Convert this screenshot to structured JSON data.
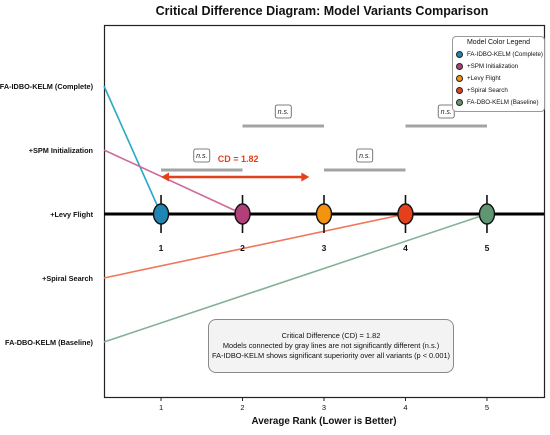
{
  "chart_data": {
    "type": "critical-difference",
    "title": "Critical Difference Diagram: Model Variants Comparison",
    "xlabel": "Average Rank (Lower is Better)",
    "xlim": [
      0.3,
      5.7
    ],
    "xticks": [
      1,
      2,
      3,
      4,
      5
    ],
    "xtick_labels": [
      "1",
      "2",
      "3",
      "4",
      "5"
    ],
    "models": [
      {
        "label": "FA-IDBO-KELM (Complete)",
        "legend": "FA-IDBO-KELM (Complete)",
        "rank": 1,
        "color": "#1f86b4"
      },
      {
        "label": "+SPM Initialization",
        "legend": "+SPM Initialization",
        "rank": 2,
        "color": "#b13f7a"
      },
      {
        "label": "+Levy Flight",
        "legend": "+Levy Flight",
        "rank": 3,
        "color": "#f4930e"
      },
      {
        "label": "+Spiral Search",
        "legend": "+Spiral Search",
        "rank": 4,
        "color": "#e4401a"
      },
      {
        "label": "FA-DBO-KELM (Baseline)",
        "legend": "FA-DBO-KELM (Baseline)",
        "rank": 5,
        "color": "#5f9773"
      }
    ],
    "cd": {
      "value": 1.82,
      "label": "CD = 1.82",
      "from": 1,
      "to": 2.82,
      "color": "#e4401a"
    },
    "ns_groups": [
      {
        "from": 1,
        "to": 2,
        "label": "n.s."
      },
      {
        "from": 2,
        "to": 3,
        "label": "n.s."
      },
      {
        "from": 3,
        "to": 4,
        "label": "n.s."
      },
      {
        "from": 4,
        "to": 5,
        "label": "n.s."
      }
    ],
    "legend_title": "Model Color Legend",
    "legend_position": "top-right",
    "note_lines": [
      "Critical Difference (CD) = 1.82",
      "Models connected by gray lines are not significantly different (n.s.)",
      "FA-IDBO-KELM shows significant superiority over all variants (p < 0.001)"
    ],
    "connector_colors": [
      "#2aa9c4",
      "#cc6a9c",
      "#f4930e",
      "#f0765c",
      "#86b097"
    ],
    "grid": false
  }
}
